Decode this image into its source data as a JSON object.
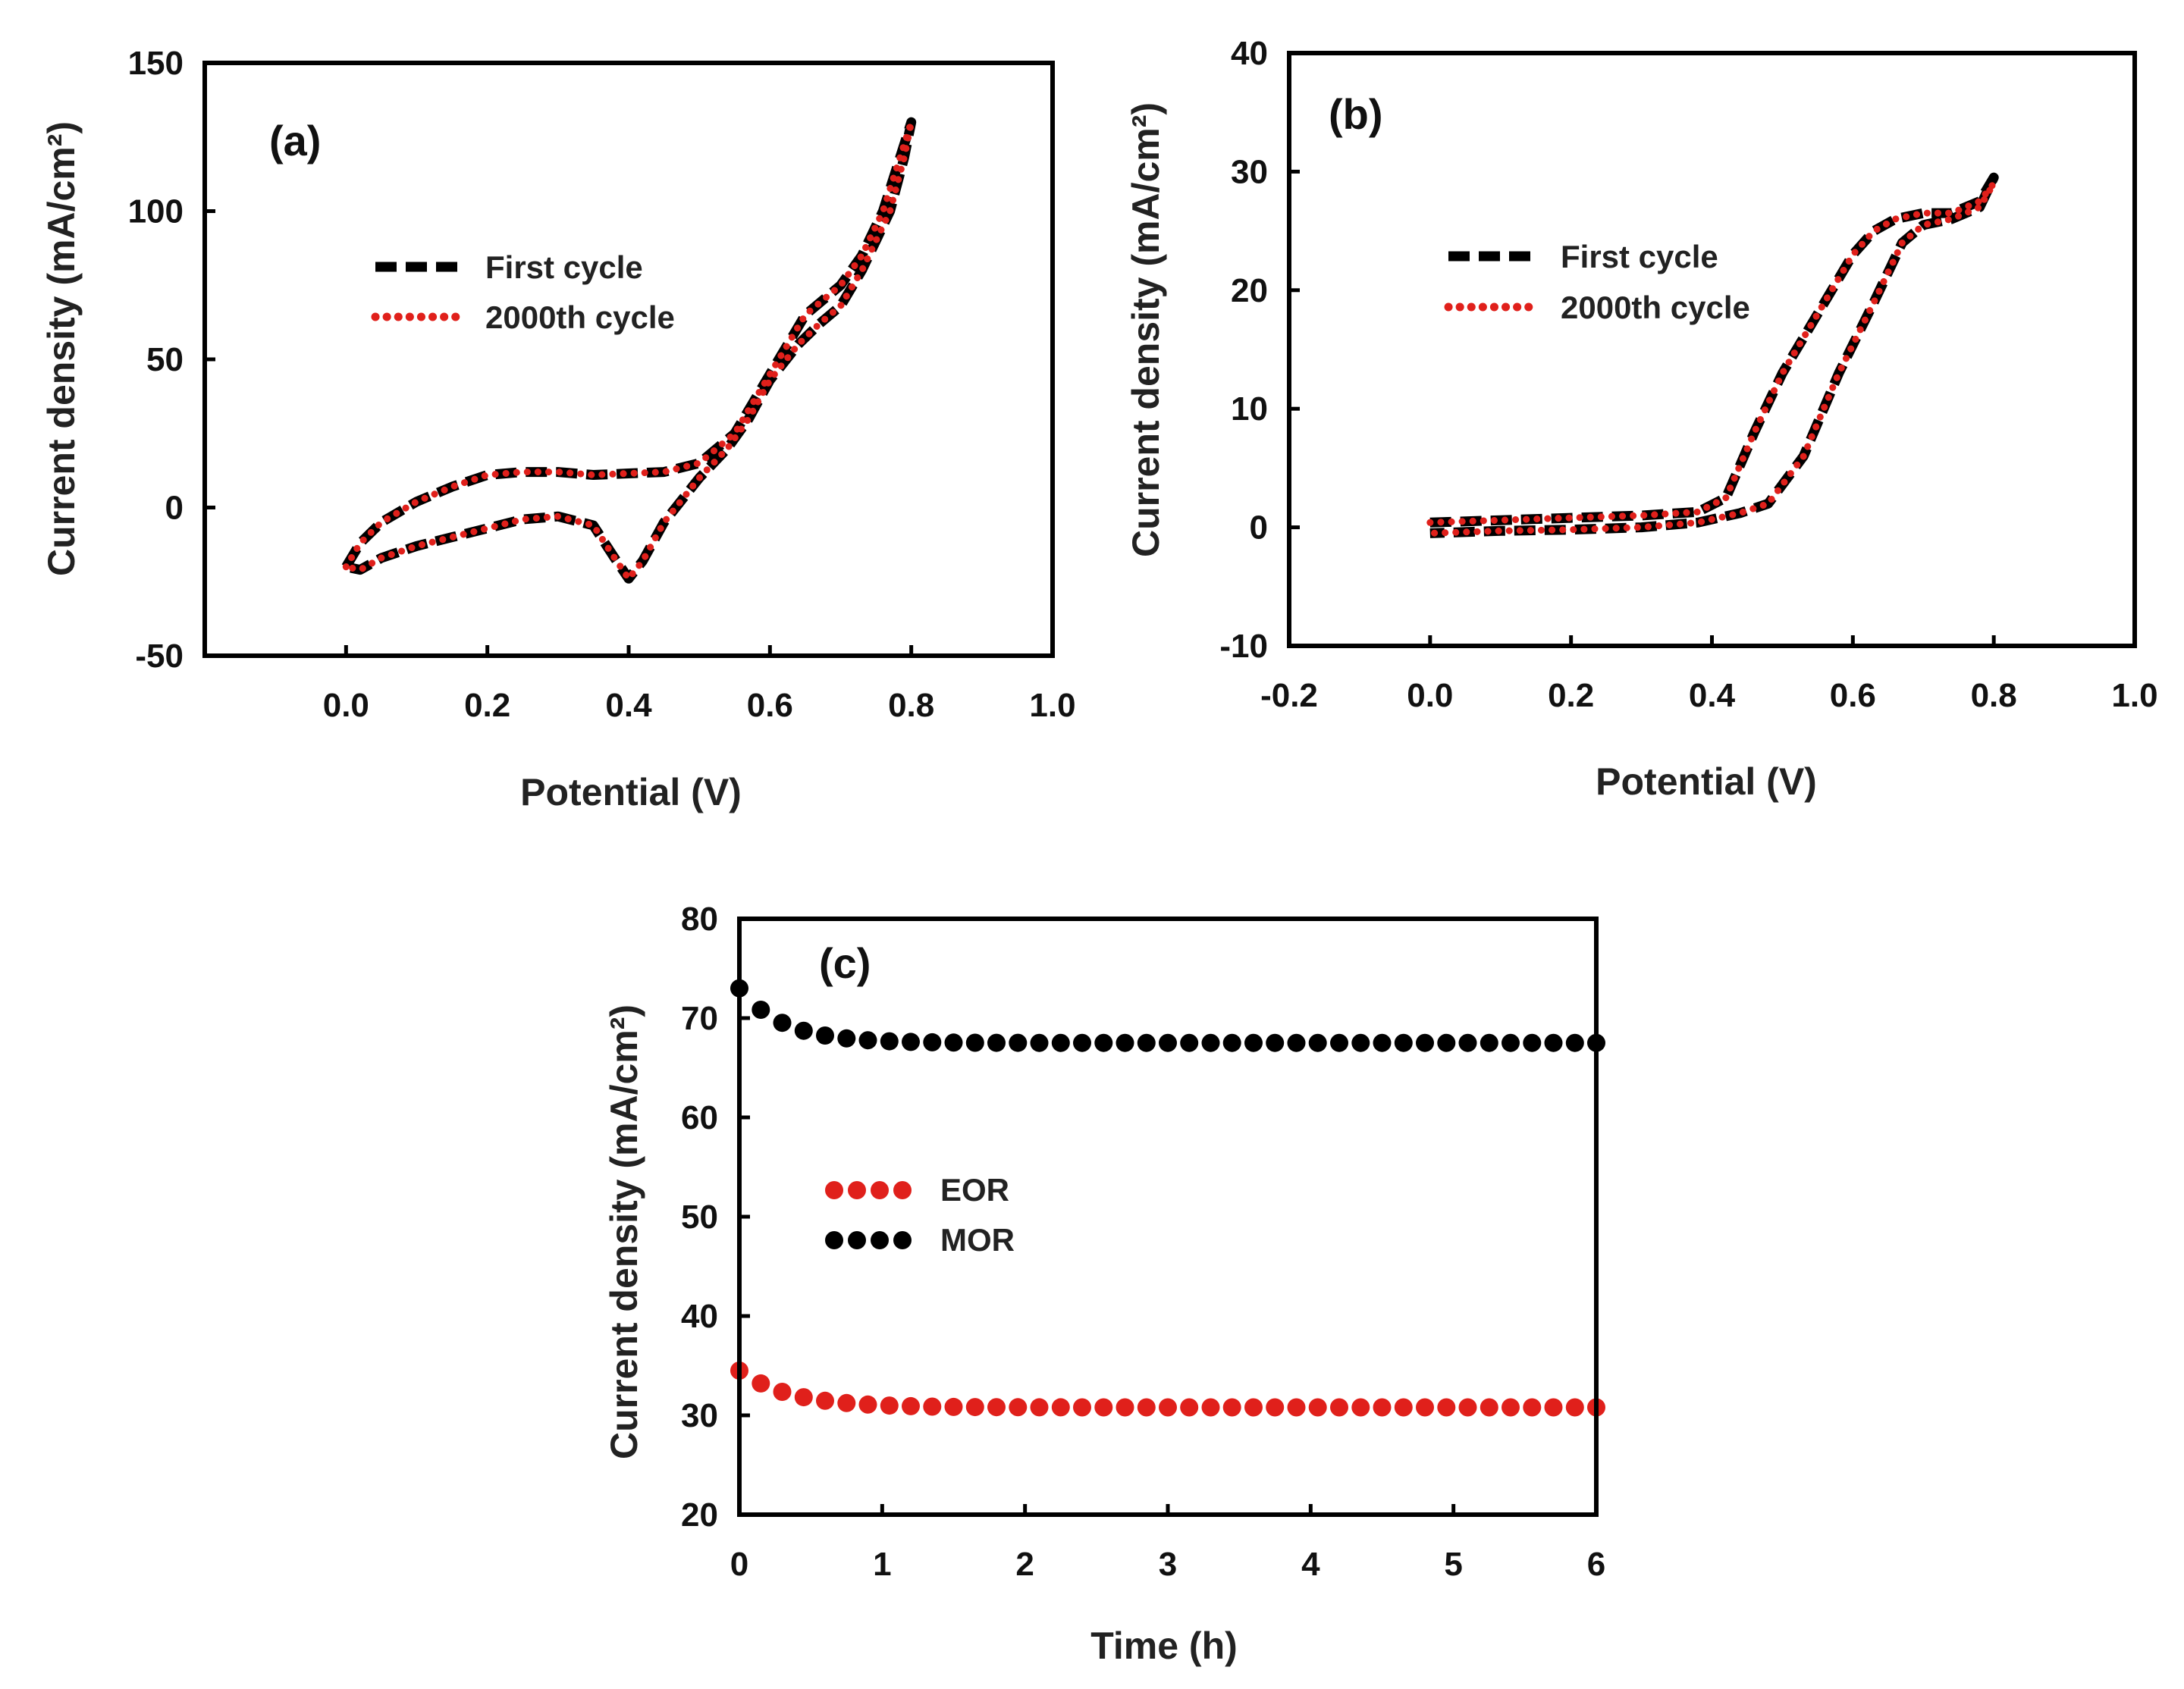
{
  "chart_data": [
    {
      "type": "line",
      "panel_label": "(a)",
      "xlabel": "Potential (V)",
      "ylabel": "Current density (mA/cm²)",
      "xlim": [
        -0.2,
        1.0
      ],
      "ylim": [
        -50,
        150
      ],
      "xticks": [
        0.0,
        0.2,
        0.4,
        0.6,
        0.8,
        1.0
      ],
      "xtick_labels": [
        "0.0",
        "0.2",
        "0.4",
        "0.6",
        "0.8",
        "1.0"
      ],
      "yticks": [
        -50,
        0,
        50,
        100,
        150
      ],
      "ytick_labels": [
        "-50",
        "0",
        "50",
        "100",
        "150"
      ],
      "grid": false,
      "legend_position": "upper-left",
      "series": [
        {
          "name": "First cycle",
          "style": "dashed",
          "color": "#000000",
          "points": [
            [
              0.0,
              -20
            ],
            [
              0.02,
              -12
            ],
            [
              0.05,
              -5
            ],
            [
              0.1,
              2
            ],
            [
              0.15,
              7
            ],
            [
              0.2,
              11
            ],
            [
              0.25,
              12
            ],
            [
              0.3,
              12
            ],
            [
              0.35,
              11
            ],
            [
              0.4,
              11.5
            ],
            [
              0.45,
              12
            ],
            [
              0.5,
              15
            ],
            [
              0.55,
              25
            ],
            [
              0.6,
              45
            ],
            [
              0.65,
              65
            ],
            [
              0.7,
              75
            ],
            [
              0.73,
              85
            ],
            [
              0.76,
              100
            ],
            [
              0.78,
              115
            ],
            [
              0.8,
              130
            ],
            [
              0.79,
              118
            ],
            [
              0.77,
              100
            ],
            [
              0.73,
              80
            ],
            [
              0.7,
              68
            ],
            [
              0.67,
              62
            ],
            [
              0.64,
              55
            ],
            [
              0.6,
              43
            ],
            [
              0.57,
              30
            ],
            [
              0.54,
              20
            ],
            [
              0.5,
              10
            ],
            [
              0.45,
              -5
            ],
            [
              0.42,
              -18
            ],
            [
              0.4,
              -24
            ],
            [
              0.38,
              -17
            ],
            [
              0.35,
              -6
            ],
            [
              0.3,
              -3
            ],
            [
              0.25,
              -4
            ],
            [
              0.2,
              -7
            ],
            [
              0.15,
              -10
            ],
            [
              0.1,
              -13
            ],
            [
              0.05,
              -17
            ],
            [
              0.02,
              -21
            ],
            [
              0.0,
              -20
            ]
          ]
        },
        {
          "name": "2000th cycle",
          "style": "dotted",
          "color": "#e0201b",
          "points": [
            [
              0.0,
              -20
            ],
            [
              0.02,
              -12
            ],
            [
              0.05,
              -5
            ],
            [
              0.1,
              2
            ],
            [
              0.15,
              7
            ],
            [
              0.2,
              11
            ],
            [
              0.25,
              12
            ],
            [
              0.3,
              12
            ],
            [
              0.35,
              11
            ],
            [
              0.4,
              11.5
            ],
            [
              0.45,
              12
            ],
            [
              0.5,
              15
            ],
            [
              0.55,
              25
            ],
            [
              0.6,
              45
            ],
            [
              0.65,
              65
            ],
            [
              0.7,
              75
            ],
            [
              0.73,
              85
            ],
            [
              0.76,
              100
            ],
            [
              0.78,
              115
            ],
            [
              0.8,
              130
            ],
            [
              0.79,
              118
            ],
            [
              0.77,
              100
            ],
            [
              0.73,
              80
            ],
            [
              0.7,
              68
            ],
            [
              0.67,
              62
            ],
            [
              0.64,
              55
            ],
            [
              0.6,
              43
            ],
            [
              0.57,
              30
            ],
            [
              0.54,
              20
            ],
            [
              0.5,
              10
            ],
            [
              0.45,
              -5
            ],
            [
              0.42,
              -18
            ],
            [
              0.4,
              -24
            ],
            [
              0.38,
              -17
            ],
            [
              0.35,
              -6
            ],
            [
              0.3,
              -3
            ],
            [
              0.25,
              -4
            ],
            [
              0.2,
              -7
            ],
            [
              0.15,
              -10
            ],
            [
              0.1,
              -13
            ],
            [
              0.05,
              -17
            ],
            [
              0.02,
              -21
            ],
            [
              0.0,
              -20
            ]
          ]
        }
      ]
    },
    {
      "type": "line",
      "panel_label": "(b)",
      "xlabel": "Potential (V)",
      "ylabel": "Current density (mA/cm²)",
      "xlim": [
        -0.2,
        1.0
      ],
      "ylim": [
        -10,
        40
      ],
      "xticks": [
        -0.2,
        0.0,
        0.2,
        0.4,
        0.6,
        0.8,
        1.0
      ],
      "xtick_labels": [
        "-0.2",
        "0.0",
        "0.2",
        "0.4",
        "0.6",
        "0.8",
        "1.0"
      ],
      "yticks": [
        -10,
        0,
        10,
        20,
        30,
        40
      ],
      "ytick_labels": [
        "-10",
        "0",
        "10",
        "20",
        "30",
        "40"
      ],
      "grid": false,
      "legend_position": "upper-left",
      "series": [
        {
          "name": "First cycle",
          "style": "dashed",
          "color": "#000000",
          "points": [
            [
              0.0,
              0.4
            ],
            [
              0.1,
              0.6
            ],
            [
              0.2,
              0.8
            ],
            [
              0.3,
              1.0
            ],
            [
              0.38,
              1.3
            ],
            [
              0.42,
              2.5
            ],
            [
              0.46,
              8
            ],
            [
              0.5,
              13
            ],
            [
              0.55,
              18
            ],
            [
              0.6,
              23
            ],
            [
              0.63,
              25
            ],
            [
              0.66,
              26
            ],
            [
              0.7,
              26.5
            ],
            [
              0.74,
              26.5
            ],
            [
              0.78,
              27.5
            ],
            [
              0.8,
              29.5
            ],
            [
              0.78,
              27
            ],
            [
              0.74,
              26
            ],
            [
              0.7,
              25.5
            ],
            [
              0.67,
              24
            ],
            [
              0.63,
              19
            ],
            [
              0.58,
              13
            ],
            [
              0.53,
              6
            ],
            [
              0.48,
              2
            ],
            [
              0.44,
              1.2
            ],
            [
              0.38,
              0.4
            ],
            [
              0.3,
              0
            ],
            [
              0.2,
              -0.2
            ],
            [
              0.1,
              -0.3
            ],
            [
              0.0,
              -0.5
            ]
          ]
        },
        {
          "name": "2000th cycle",
          "style": "dotted",
          "color": "#e0201b",
          "points": [
            [
              0.0,
              0.4
            ],
            [
              0.1,
              0.6
            ],
            [
              0.2,
              0.8
            ],
            [
              0.3,
              1.0
            ],
            [
              0.38,
              1.3
            ],
            [
              0.42,
              2.5
            ],
            [
              0.46,
              8
            ],
            [
              0.5,
              13
            ],
            [
              0.55,
              18
            ],
            [
              0.6,
              23
            ],
            [
              0.63,
              25
            ],
            [
              0.66,
              26
            ],
            [
              0.7,
              26.5
            ],
            [
              0.74,
              26.5
            ],
            [
              0.78,
              27.5
            ],
            [
              0.8,
              29
            ],
            [
              0.78,
              27
            ],
            [
              0.74,
              26
            ],
            [
              0.7,
              25.5
            ],
            [
              0.67,
              24
            ],
            [
              0.63,
              19
            ],
            [
              0.58,
              13
            ],
            [
              0.53,
              6
            ],
            [
              0.48,
              2
            ],
            [
              0.44,
              1.2
            ],
            [
              0.38,
              0.4
            ],
            [
              0.3,
              0
            ],
            [
              0.2,
              -0.2
            ],
            [
              0.1,
              -0.3
            ],
            [
              0.0,
              -0.5
            ]
          ]
        }
      ]
    },
    {
      "type": "scatter",
      "panel_label": "(c)",
      "xlabel": "Time (h)",
      "ylabel": "Current density (mA/cm²)",
      "xlim": [
        0,
        6
      ],
      "ylim": [
        20,
        80
      ],
      "xticks": [
        0,
        1,
        2,
        3,
        4,
        5,
        6
      ],
      "xtick_labels": [
        "0",
        "1",
        "2",
        "3",
        "4",
        "5",
        "6"
      ],
      "yticks": [
        20,
        30,
        40,
        50,
        60,
        70,
        80
      ],
      "ytick_labels": [
        "20",
        "30",
        "40",
        "50",
        "60",
        "70",
        "80"
      ],
      "grid": false,
      "legend_position": "center-left",
      "series": [
        {
          "name": "EOR",
          "color": "#e0201b",
          "start": 34.5,
          "plateau": 30.8,
          "decay_h": 0.35,
          "step_h": 0.15
        },
        {
          "name": "MOR",
          "color": "#000000",
          "start": 73,
          "plateau": 67.5,
          "decay_h": 0.3,
          "step_h": 0.15
        }
      ]
    }
  ]
}
